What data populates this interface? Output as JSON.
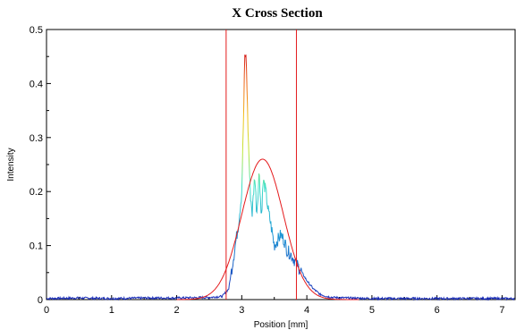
{
  "chart_data": {
    "type": "line",
    "title": "X Cross Section",
    "xlabel": "Position [mm]",
    "ylabel": "Intensity",
    "xlim": [
      0,
      7.2
    ],
    "ylim": [
      0,
      0.5
    ],
    "x_ticks": [
      "0",
      "1",
      "2",
      "3",
      "4",
      "5",
      "6",
      "7"
    ],
    "y_ticks": [
      "0",
      "0.1",
      "0.2",
      "0.3",
      "0.4",
      "0.5"
    ],
    "grid": false,
    "legend": "none",
    "colors": {
      "fit": "#e41a1c",
      "markers": "#e41a1c",
      "baseline": "#1f2fb0"
    },
    "vertical_markers": [
      2.76,
      3.84
    ],
    "series": [
      {
        "style": "rainbow-colored measured profile",
        "x": [
          0,
          0.5,
          1,
          1.5,
          2,
          2.5,
          2.7,
          2.8,
          2.85,
          2.9,
          2.95,
          3.0,
          3.02,
          3.05,
          3.07,
          3.1,
          3.13,
          3.16,
          3.2,
          3.23,
          3.27,
          3.3,
          3.33,
          3.37,
          3.4,
          3.43,
          3.46,
          3.5,
          3.55,
          3.6,
          3.65,
          3.7,
          3.75,
          3.8,
          3.85,
          3.9,
          3.95,
          4.0,
          4.1,
          4.2,
          4.3,
          4.4,
          4.6,
          5,
          6,
          7.2
        ],
        "y": [
          0.002,
          0.003,
          0.002,
          0.003,
          0.003,
          0.004,
          0.006,
          0.02,
          0.06,
          0.1,
          0.14,
          0.2,
          0.3,
          0.46,
          0.44,
          0.3,
          0.2,
          0.16,
          0.23,
          0.16,
          0.24,
          0.15,
          0.22,
          0.2,
          0.17,
          0.15,
          0.13,
          0.1,
          0.11,
          0.12,
          0.11,
          0.09,
          0.085,
          0.075,
          0.065,
          0.055,
          0.045,
          0.035,
          0.02,
          0.01,
          0.006,
          0.004,
          0.003,
          0.002,
          0.002,
          0.002
        ]
      },
      {
        "style": "red gaussian fit",
        "amplitude": 0.26,
        "center": 3.32,
        "sigma": 0.32,
        "x_range": [
          2,
          4.8
        ]
      }
    ]
  }
}
